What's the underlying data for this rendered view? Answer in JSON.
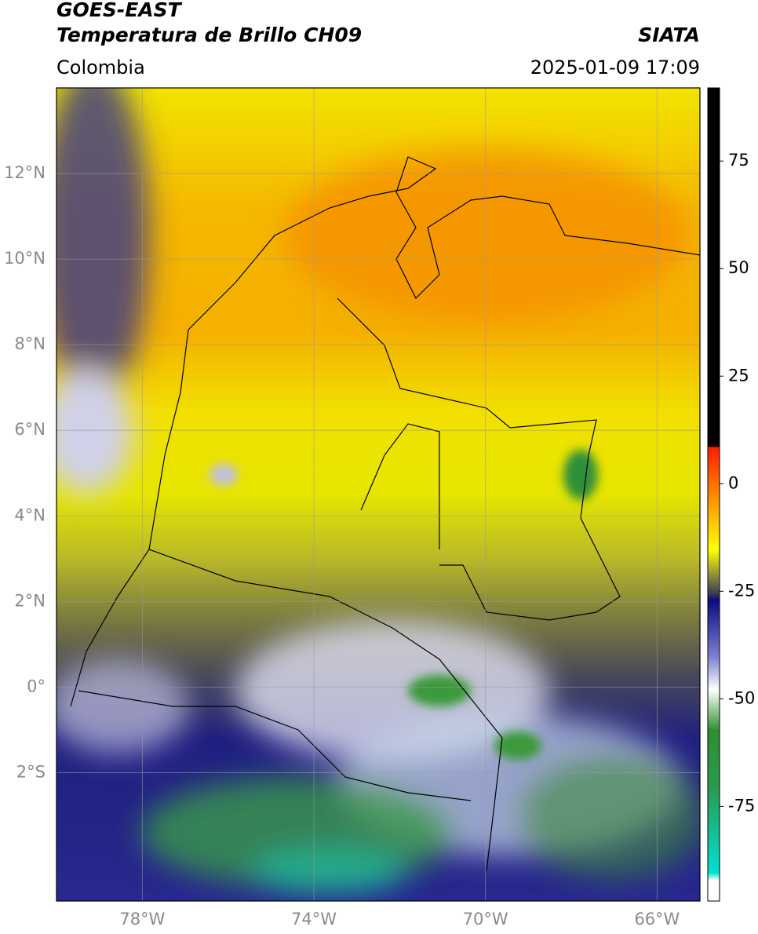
{
  "header": {
    "title_line1": "GOES-EAST",
    "title_line2": "Temperatura de Brillo CH09",
    "source": "SIATA",
    "region": "Colombia",
    "timestamp": "2025-01-09 17:09"
  },
  "map": {
    "xlim": [
      -80,
      -65
    ],
    "ylim": [
      -5,
      14
    ],
    "xticks": [
      {
        "value": -78,
        "label": "78°W"
      },
      {
        "value": -74,
        "label": "74°W"
      },
      {
        "value": -70,
        "label": "70°W"
      },
      {
        "value": -66,
        "label": "66°W"
      }
    ],
    "yticks": [
      {
        "value": 12,
        "label": "12°N"
      },
      {
        "value": 10,
        "label": "10°N"
      },
      {
        "value": 8,
        "label": "8°N"
      },
      {
        "value": 6,
        "label": "6°N"
      },
      {
        "value": 4,
        "label": "4°N"
      },
      {
        "value": 2,
        "label": "2°N"
      },
      {
        "value": 0,
        "label": "0°"
      },
      {
        "value": -2,
        "label": "2°S"
      }
    ],
    "grid": true
  },
  "colorbar": {
    "lim": [
      -97,
      92
    ],
    "ticks": [
      75,
      50,
      25,
      0,
      -25,
      -50,
      -75
    ]
  }
}
